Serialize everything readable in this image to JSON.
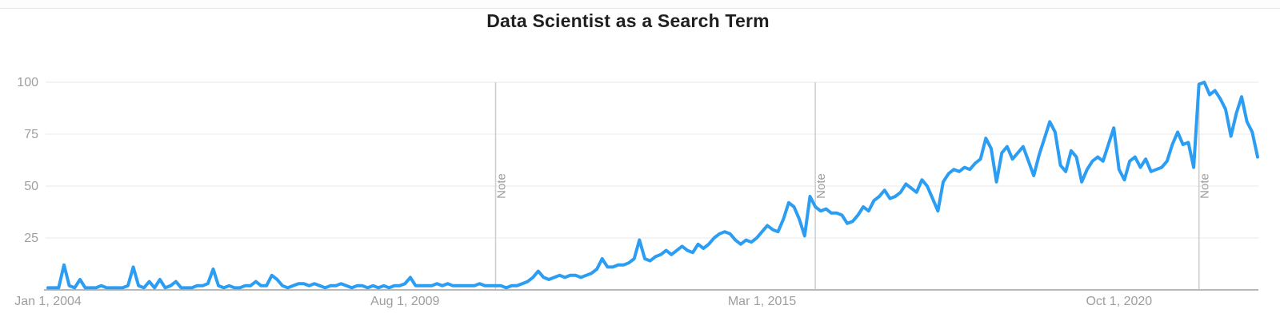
{
  "page": {
    "title": "Data Scientist as a Search Term"
  },
  "chart_data": {
    "type": "line",
    "title": "Data Scientist as a Search Term",
    "frequency": "monthly",
    "start_month": "2004-01",
    "end_month": "2022-12",
    "ylim": [
      0,
      100
    ],
    "y_ticks": [
      25,
      50,
      75,
      100
    ],
    "grid": true,
    "legend": "none",
    "line_color": "#2b9df3",
    "x_ticks": [
      {
        "label": "Jan 1, 2004",
        "month_index": 0
      },
      {
        "label": "Aug 1, 2009",
        "month_index": 67
      },
      {
        "label": "Mar 1, 2015",
        "month_index": 134
      },
      {
        "label": "Oct 1, 2020",
        "month_index": 201
      }
    ],
    "notes": [
      {
        "label": "Note",
        "date": "2011-01",
        "month_index": 84
      },
      {
        "label": "Note",
        "date": "2016-01",
        "month_index": 144
      },
      {
        "label": "Note",
        "date": "2022-01",
        "month_index": 216
      }
    ],
    "values": [
      1,
      1,
      1,
      12,
      2,
      1,
      5,
      1,
      1,
      1,
      2,
      1,
      1,
      1,
      1,
      2,
      11,
      2,
      1,
      4,
      1,
      5,
      1,
      2,
      4,
      1,
      1,
      1,
      2,
      2,
      3,
      10,
      2,
      1,
      2,
      1,
      1,
      2,
      2,
      4,
      2,
      2,
      7,
      5,
      2,
      1,
      2,
      3,
      3,
      2,
      3,
      2,
      1,
      2,
      2,
      3,
      2,
      1,
      2,
      2,
      1,
      2,
      1,
      2,
      1,
      2,
      2,
      3,
      6,
      2,
      2,
      2,
      2,
      3,
      2,
      3,
      2,
      2,
      2,
      2,
      2,
      3,
      2,
      2,
      2,
      2,
      1,
      2,
      2,
      3,
      4,
      6,
      9,
      6,
      5,
      6,
      7,
      6,
      7,
      7,
      6,
      7,
      8,
      10,
      15,
      11,
      11,
      12,
      12,
      13,
      15,
      24,
      15,
      14,
      16,
      17,
      19,
      17,
      19,
      21,
      19,
      18,
      22,
      20,
      22,
      25,
      27,
      28,
      27,
      24,
      22,
      24,
      23,
      25,
      28,
      31,
      29,
      28,
      34,
      42,
      40,
      34,
      26,
      45,
      40,
      38,
      39,
      37,
      37,
      36,
      32,
      33,
      36,
      40,
      38,
      43,
      45,
      48,
      44,
      45,
      47,
      51,
      49,
      47,
      53,
      50,
      44,
      38,
      52,
      56,
      58,
      57,
      59,
      58,
      61,
      63,
      73,
      68,
      52,
      66,
      69,
      63,
      66,
      69,
      62,
      55,
      65,
      73,
      81,
      76,
      60,
      57,
      67,
      64,
      52,
      58,
      62,
      64,
      62,
      70,
      78,
      58,
      53,
      62,
      64,
      59,
      63,
      57,
      58,
      59,
      62,
      70,
      76,
      70,
      71,
      59,
      99,
      100,
      94,
      96,
      92,
      87,
      74,
      85,
      93,
      81,
      76,
      64
    ]
  }
}
